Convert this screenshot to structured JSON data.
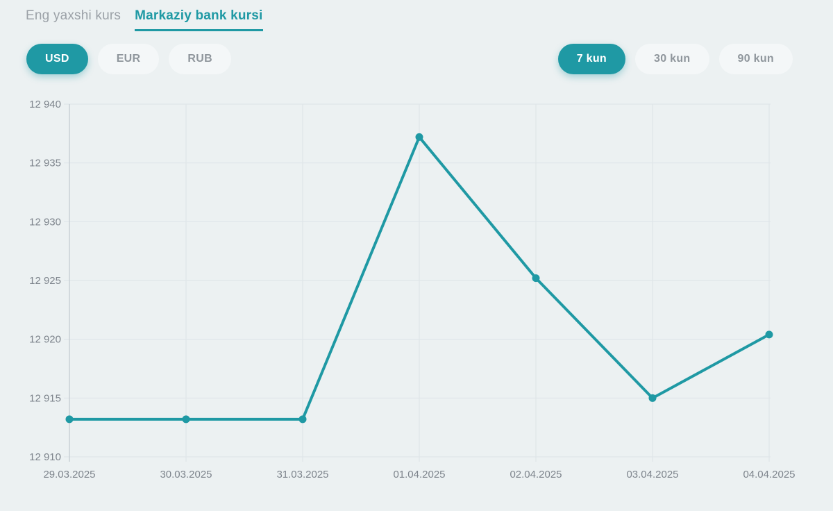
{
  "view_tabs": {
    "items": [
      {
        "label": "Eng yaxshi kurs",
        "active": false
      },
      {
        "label": "Markaziy bank kursi",
        "active": true
      }
    ]
  },
  "currency_selector": {
    "options": [
      {
        "label": "USD",
        "active": true
      },
      {
        "label": "EUR",
        "active": false
      },
      {
        "label": "RUB",
        "active": false
      }
    ]
  },
  "period_selector": {
    "options": [
      {
        "label": "7 kun",
        "active": true
      },
      {
        "label": "30 kun",
        "active": false
      },
      {
        "label": "90 kun",
        "active": false
      }
    ]
  },
  "colors": {
    "accent_teal": "#1f99a4",
    "page_background": "#ecf1f2",
    "inactive_text": "#8f969c",
    "axis_text": "#7d848c",
    "gridline": "#dfe5e8",
    "axis_line": "#c7ced3"
  },
  "chart_data": {
    "type": "line",
    "title": "",
    "xlabel": "",
    "ylabel": "",
    "categories": [
      "29.03.2025",
      "30.03.2025",
      "31.03.2025",
      "01.04.2025",
      "02.04.2025",
      "03.04.2025",
      "04.04.2025"
    ],
    "series": [
      {
        "name": "USD markaziy bank kursi",
        "color": "#1f99a4",
        "values": [
          12913.2,
          12913.2,
          12913.2,
          12937.2,
          12925.2,
          12915.0,
          12920.4
        ]
      }
    ],
    "ylim": [
      12910,
      12940
    ],
    "ytick_step": 5,
    "ytick_labels": [
      "12 910",
      "12 915",
      "12 920",
      "12 925",
      "12 930",
      "12 935",
      "12 940"
    ],
    "grid": true,
    "legend": "none",
    "markers": true
  }
}
